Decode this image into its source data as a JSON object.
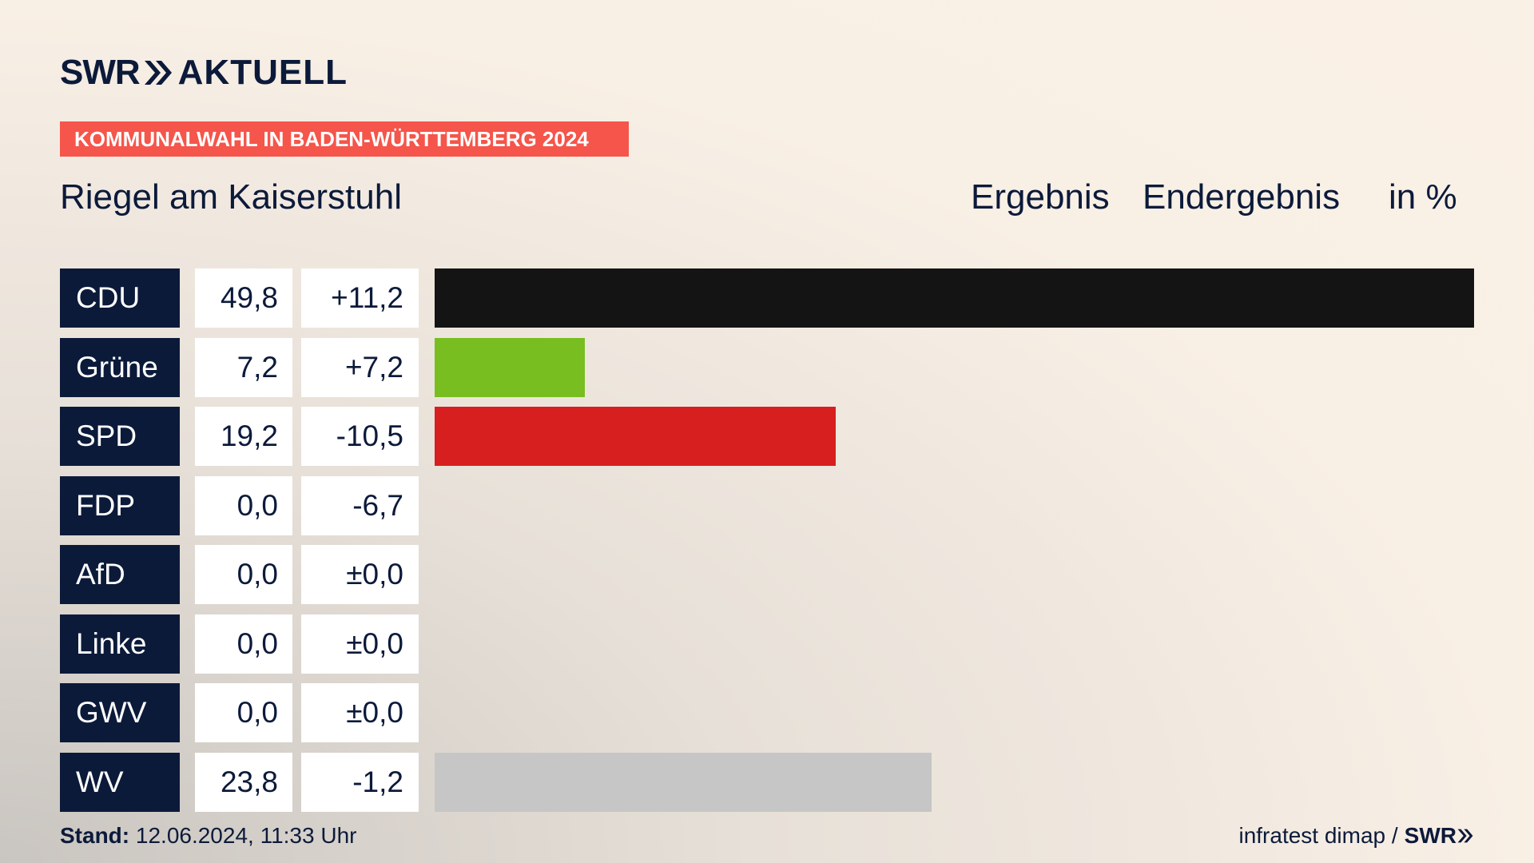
{
  "brand": {
    "swr": "SWR",
    "aktuell": "AKTUELL"
  },
  "badge": "KOMMUNALWAHL IN BADEN-WÜRTTEMBERG 2024",
  "place": "Riegel am Kaiserstuhl",
  "headers": {
    "col1": "Ergebnis",
    "col2": "Endergebnis",
    "col3": "in %"
  },
  "footer": {
    "stand_label": "Stand:",
    "stand_value": " 12.06.2024, 11:33 Uhr",
    "source": "infratest dimap /",
    "source_brand": "SWR"
  },
  "colors": {
    "navy": "#0c1a3a",
    "badge": "#f5554a"
  },
  "chart_data": {
    "type": "bar",
    "categories": [
      "CDU",
      "Grüne",
      "SPD",
      "FDP",
      "AfD",
      "Linke",
      "GWV",
      "WV"
    ],
    "values": [
      49.8,
      7.2,
      19.2,
      0.0,
      0.0,
      0.0,
      0.0,
      23.8
    ],
    "value_labels": [
      "49,8",
      "7,2",
      "19,2",
      "0,0",
      "0,0",
      "0,0",
      "0,0",
      "23,8"
    ],
    "diff_labels": [
      "+11,2",
      "+7,2",
      "-10,5",
      "-6,7",
      "±0,0",
      "±0,0",
      "±0,0",
      "-1,2"
    ],
    "colors": [
      "#141414",
      "#78be20",
      "#d71f1f",
      "#ffe600",
      "#009ee0",
      "#be3075",
      "#7a7a7a",
      "#c6c6c6"
    ],
    "xlim": [
      0,
      49.8
    ]
  }
}
